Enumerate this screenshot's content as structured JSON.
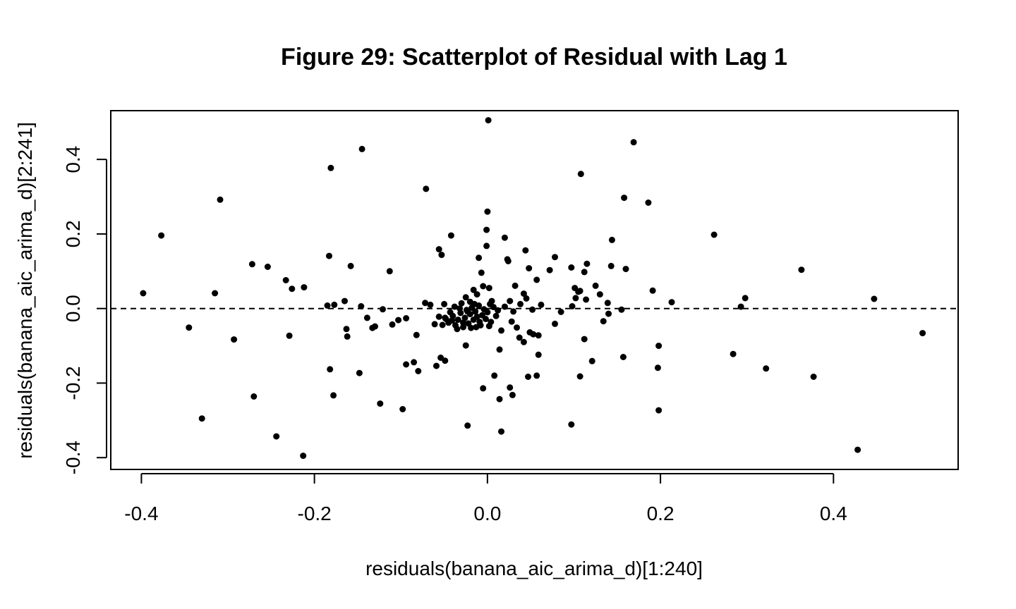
{
  "chart_data": {
    "type": "scatter",
    "title": "Figure 29: Scatterplot of Residual with Lag 1",
    "xlabel": "residuals(banana_aic_arima_d)[1:240]",
    "ylabel": "residuals(banana_aic_arima_d)[2:241]",
    "xlim": [
      -0.4354,
      0.5441
    ],
    "ylim": [
      -0.4317,
      0.5308
    ],
    "xticks": [
      "-0.4",
      "-0.2",
      "0.0",
      "0.2",
      "0.4"
    ],
    "yticks": [
      "-0.4",
      "-0.2",
      "0.0",
      "0.2",
      "0.4"
    ],
    "reference_line": {
      "y": 0,
      "style": "dashed"
    },
    "grid": false,
    "legend": "none",
    "points": [
      [
        0.001,
        0.505
      ],
      [
        0.169,
        0.446
      ],
      [
        -0.145,
        0.428
      ],
      [
        -0.181,
        0.377
      ],
      [
        0.108,
        0.361
      ],
      [
        -0.071,
        0.321
      ],
      [
        -0.309,
        0.292
      ],
      [
        0.158,
        0.297
      ],
      [
        0.186,
        0.284
      ],
      [
        0.0,
        0.26
      ],
      [
        -0.377,
        0.196
      ],
      [
        -0.042,
        0.196
      ],
      [
        0.262,
        0.198
      ],
      [
        0.02,
        0.19
      ],
      [
        0.144,
        0.184
      ],
      [
        -0.001,
        0.211
      ],
      [
        -0.001,
        0.168
      ],
      [
        -0.056,
        0.159
      ],
      [
        0.044,
        0.156
      ],
      [
        -0.053,
        0.144
      ],
      [
        -0.183,
        0.141
      ],
      [
        0.078,
        0.138
      ],
      [
        0.023,
        0.132
      ],
      [
        -0.01,
        0.136
      ],
      [
        0.024,
        0.127
      ],
      [
        -0.272,
        0.119
      ],
      [
        0.115,
        0.12
      ],
      [
        -0.254,
        0.112
      ],
      [
        0.143,
        0.114
      ],
      [
        -0.158,
        0.114
      ],
      [
        0.048,
        0.108
      ],
      [
        0.16,
        0.106
      ],
      [
        0.112,
        0.098
      ],
      [
        0.363,
        0.104
      ],
      [
        0.097,
        0.11
      ],
      [
        -0.113,
        0.1
      ],
      [
        0.072,
        0.103
      ],
      [
        -0.007,
        0.096
      ],
      [
        0.057,
        0.077
      ],
      [
        -0.233,
        0.076
      ],
      [
        -0.398,
        0.041
      ],
      [
        -0.315,
        0.041
      ],
      [
        -0.212,
        0.057
      ],
      [
        -0.226,
        0.053
      ],
      [
        0.107,
        0.047
      ],
      [
        0.125,
        0.061
      ],
      [
        0.13,
        0.038
      ],
      [
        0.191,
        0.048
      ],
      [
        0.002,
        0.055
      ],
      [
        -0.016,
        0.05
      ],
      [
        0.032,
        0.061
      ],
      [
        0.042,
        0.04
      ],
      [
        0.101,
        0.055
      ],
      [
        0.105,
        0.045
      ],
      [
        0.045,
        0.027
      ],
      [
        0.114,
        0.024
      ],
      [
        0.213,
        0.017
      ],
      [
        0.139,
        0.015
      ],
      [
        0.298,
        0.028
      ],
      [
        0.447,
        0.026
      ],
      [
        0.293,
        0.005
      ],
      [
        -0.165,
        0.02
      ],
      [
        -0.177,
        0.01
      ],
      [
        -0.185,
        0.008
      ],
      [
        -0.146,
        0.006
      ],
      [
        -0.072,
        0.015
      ],
      [
        -0.066,
        0.01
      ],
      [
        -0.05,
        0.012
      ],
      [
        0.062,
        0.01
      ],
      [
        0.102,
        0.028
      ],
      [
        -0.345,
        -0.051
      ],
      [
        -0.293,
        -0.083
      ],
      [
        -0.229,
        -0.073
      ],
      [
        -0.163,
        -0.055
      ],
      [
        -0.162,
        -0.075
      ],
      [
        -0.13,
        -0.048
      ],
      [
        -0.133,
        -0.052
      ],
      [
        -0.11,
        -0.043
      ],
      [
        -0.094,
        -0.026
      ],
      [
        -0.082,
        -0.071
      ],
      [
        -0.139,
        -0.025
      ],
      [
        -0.121,
        -0.002
      ],
      [
        -0.103,
        -0.031
      ],
      [
        0.002,
        -0.047
      ],
      [
        0.016,
        -0.059
      ],
      [
        0.028,
        -0.035
      ],
      [
        0.034,
        -0.051
      ],
      [
        0.037,
        -0.078
      ],
      [
        0.049,
        -0.064
      ],
      [
        0.053,
        -0.069
      ],
      [
        0.042,
        -0.09
      ],
      [
        0.059,
        -0.072
      ],
      [
        0.078,
        -0.041
      ],
      [
        0.085,
        -0.009
      ],
      [
        0.098,
        0.006
      ],
      [
        0.155,
        -0.003
      ],
      [
        0.134,
        -0.034
      ],
      [
        0.14,
        -0.014
      ],
      [
        0.112,
        -0.082
      ],
      [
        -0.056,
        -0.022
      ],
      [
        -0.049,
        -0.025
      ],
      [
        -0.061,
        -0.042
      ],
      [
        -0.049,
        -0.14
      ],
      [
        -0.054,
        -0.132
      ],
      [
        -0.059,
        -0.154
      ],
      [
        -0.085,
        -0.144
      ],
      [
        -0.08,
        -0.168
      ],
      [
        -0.094,
        -0.15
      ],
      [
        -0.025,
        -0.099
      ],
      [
        -0.005,
        -0.214
      ],
      [
        0.014,
        -0.11
      ],
      [
        0.014,
        -0.243
      ],
      [
        0.026,
        -0.212
      ],
      [
        0.029,
        -0.232
      ],
      [
        0.016,
        -0.33
      ],
      [
        -0.023,
        -0.314
      ],
      [
        0.008,
        -0.18
      ],
      [
        0.047,
        -0.183
      ],
      [
        0.057,
        -0.18
      ],
      [
        0.059,
        -0.124
      ],
      [
        0.097,
        -0.311
      ],
      [
        0.107,
        -0.182
      ],
      [
        0.121,
        -0.141
      ],
      [
        0.157,
        -0.13
      ],
      [
        0.198,
        -0.1
      ],
      [
        0.197,
        -0.159
      ],
      [
        0.198,
        -0.273
      ],
      [
        0.284,
        -0.122
      ],
      [
        0.322,
        -0.161
      ],
      [
        0.377,
        -0.183
      ],
      [
        0.503,
        -0.066
      ],
      [
        0.428,
        -0.379
      ],
      [
        -0.148,
        -0.173
      ],
      [
        -0.124,
        -0.255
      ],
      [
        -0.098,
        -0.27
      ],
      [
        -0.182,
        -0.163
      ],
      [
        -0.178,
        -0.233
      ],
      [
        -0.27,
        -0.236
      ],
      [
        -0.33,
        -0.295
      ],
      [
        -0.244,
        -0.343
      ],
      [
        -0.213,
        -0.395
      ],
      [
        -0.045,
        -0.038
      ],
      [
        -0.04,
        -0.02
      ],
      [
        -0.037,
        -0.045
      ],
      [
        -0.034,
        -0.03
      ],
      [
        -0.031,
        -0.012
      ],
      [
        -0.028,
        -0.05
      ],
      [
        -0.026,
        -0.025
      ],
      [
        -0.024,
        -0.004
      ],
      [
        -0.022,
        -0.04
      ],
      [
        -0.02,
        -0.015
      ],
      [
        -0.018,
        0.002
      ],
      [
        -0.016,
        -0.03
      ],
      [
        -0.014,
        -0.008
      ],
      [
        -0.012,
        -0.022
      ],
      [
        -0.01,
        0.008
      ],
      [
        -0.008,
        -0.045
      ],
      [
        -0.006,
        -0.018
      ],
      [
        -0.004,
        -0.002
      ],
      [
        -0.002,
        -0.028
      ],
      [
        0.0,
        -0.01
      ],
      [
        0.004,
        -0.036
      ],
      [
        0.007,
        0.004
      ],
      [
        0.01,
        -0.02
      ],
      [
        -0.03,
        0.014
      ],
      [
        -0.025,
        0.03
      ],
      [
        -0.02,
        0.018
      ],
      [
        -0.012,
        0.038
      ],
      [
        -0.005,
        0.06
      ],
      [
        0.005,
        0.02
      ],
      [
        -0.038,
        0.005
      ],
      [
        -0.043,
        -0.01
      ],
      [
        -0.048,
        -0.028
      ],
      [
        -0.052,
        -0.044
      ],
      [
        -0.035,
        -0.055
      ],
      [
        -0.028,
        -0.038
      ],
      [
        -0.019,
        -0.052
      ],
      [
        -0.009,
        -0.036
      ],
      [
        0.003,
        0.012
      ],
      [
        0.012,
        -0.005
      ],
      [
        -0.015,
        0.012
      ],
      [
        -0.023,
        -0.008
      ],
      [
        -0.032,
        0.0
      ],
      [
        -0.041,
        -0.032
      ],
      [
        -0.013,
        -0.05
      ],
      [
        0.02,
        0.005
      ],
      [
        0.026,
        0.02
      ],
      [
        0.03,
        -0.008
      ],
      [
        0.038,
        0.012
      ],
      [
        0.052,
        -0.003
      ]
    ]
  }
}
